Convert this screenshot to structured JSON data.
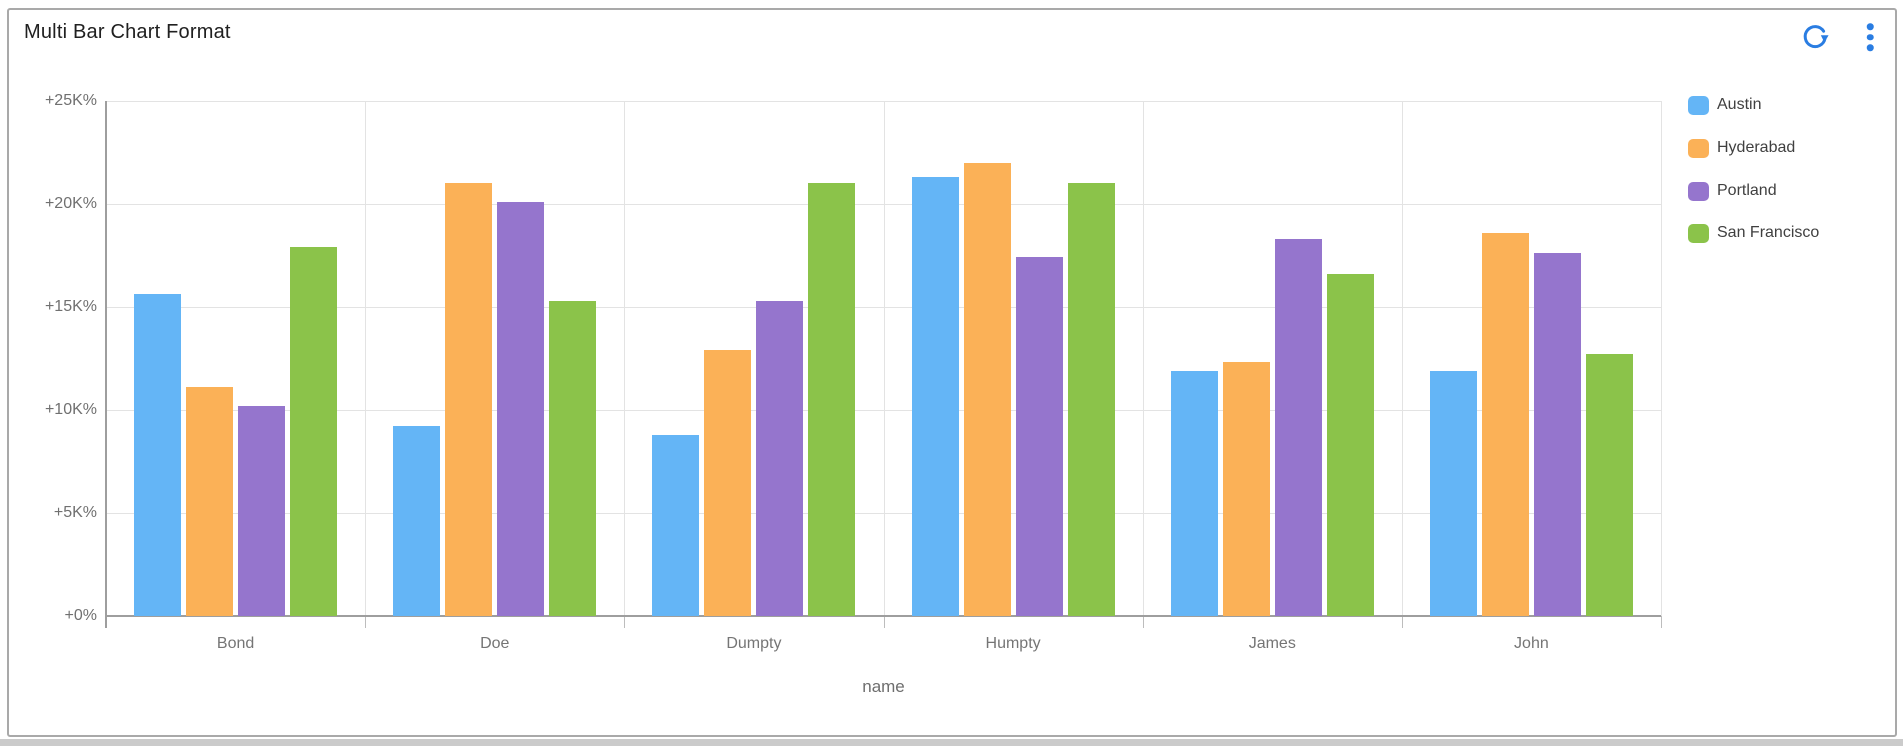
{
  "header": {
    "title": "Multi Bar Chart Format"
  },
  "toolbar": {
    "refresh_icon": "refresh-icon",
    "menu_icon": "kebab-menu-icon",
    "accent_color": "#2a7de2"
  },
  "colors": {
    "card_border": "#a9a9a9",
    "gridline": "#e3e3e3",
    "axis_line": "#9e9e9e",
    "tick": "#bdbdbd",
    "y_label_text": "#707070",
    "x_label_text": "#757575",
    "legend_text": "#404040",
    "title_text": "#202020"
  },
  "chart_data": {
    "type": "bar",
    "title": "Multi Bar Chart Format",
    "xlabel": "name",
    "ylabel": "",
    "unit": "K%",
    "ylim": [
      0,
      25
    ],
    "grid": true,
    "legend_position": "right",
    "categories": [
      "Bond",
      "Doe",
      "Dumpty",
      "Humpty",
      "James",
      "John"
    ],
    "y_ticks": [
      {
        "value": 0,
        "label": "+0%"
      },
      {
        "value": 5,
        "label": "+5K%"
      },
      {
        "value": 10,
        "label": "+10K%"
      },
      {
        "value": 15,
        "label": "+15K%"
      },
      {
        "value": 20,
        "label": "+20K%"
      },
      {
        "value": 25,
        "label": "+25K%"
      }
    ],
    "series": [
      {
        "name": "Austin",
        "color": "#64b5f6",
        "values": [
          15.6,
          9.2,
          8.8,
          21.3,
          11.9,
          11.9
        ]
      },
      {
        "name": "Hyderabad",
        "color": "#fbb157",
        "values": [
          11.1,
          21.0,
          12.9,
          22.0,
          12.3,
          18.6
        ]
      },
      {
        "name": "Portland",
        "color": "#9575cd",
        "values": [
          10.2,
          20.1,
          15.3,
          17.4,
          18.3,
          17.6
        ]
      },
      {
        "name": "San Francisco",
        "color": "#8bc34a",
        "values": [
          17.9,
          15.3,
          21.0,
          21.0,
          16.6,
          12.7
        ]
      }
    ]
  }
}
